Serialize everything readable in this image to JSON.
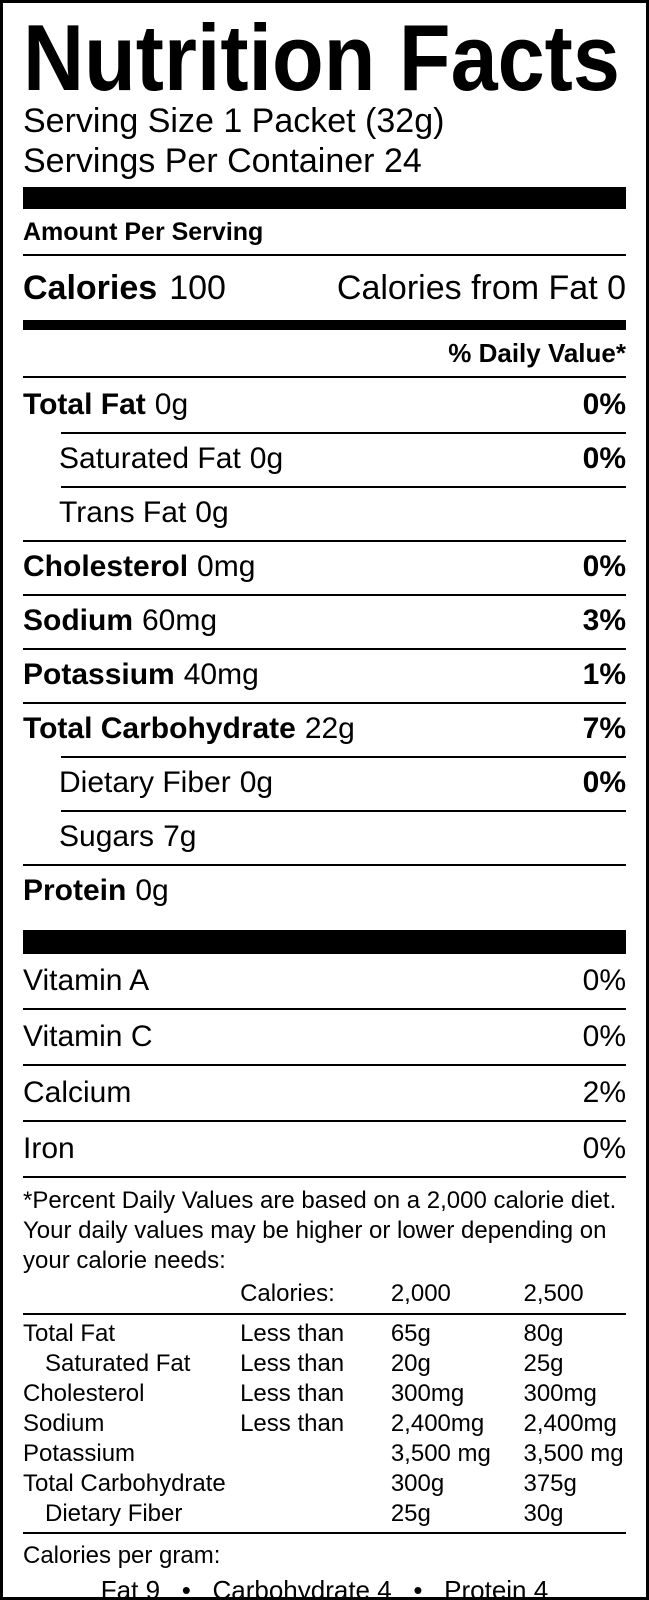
{
  "colors": {
    "ink": "#000000",
    "paper": "#ffffff"
  },
  "label": {
    "title": "Nutrition Facts",
    "serving": {
      "size": "Serving Size 1 Packet (32g)",
      "per_container": "Servings Per Container 24"
    },
    "amount_per_serving": "Amount Per Serving",
    "calories": {
      "label": "Calories",
      "value": "100",
      "from_fat": "Calories from Fat 0"
    },
    "daily_value_header": "% Daily Value*",
    "nutrients": [
      {
        "name": "Total Fat",
        "amount": "0g",
        "dv": "0%"
      },
      {
        "name": "Saturated Fat",
        "amount": "0g",
        "dv": "0%"
      },
      {
        "name": "Trans Fat",
        "amount": "0g",
        "dv": ""
      },
      {
        "name": "Cholesterol",
        "amount": "0mg",
        "dv": "0%"
      },
      {
        "name": "Sodium",
        "amount": "60mg",
        "dv": "3%"
      },
      {
        "name": "Potassium",
        "amount": "40mg",
        "dv": "1%"
      },
      {
        "name": "Total Carbohydrate",
        "amount": "22g",
        "dv": "7%"
      },
      {
        "name": "Dietary Fiber",
        "amount": "0g",
        "dv": "0%"
      },
      {
        "name": "Sugars",
        "amount": "7g",
        "dv": ""
      },
      {
        "name": "Protein",
        "amount": "0g",
        "dv": ""
      }
    ],
    "vitamins": [
      {
        "name": "Vitamin A",
        "dv": "0%"
      },
      {
        "name": "Vitamin C",
        "dv": "0%"
      },
      {
        "name": "Calcium",
        "dv": "2%"
      },
      {
        "name": "Iron",
        "dv": "0%"
      }
    ],
    "footnote": "*Percent Daily Values are based on a 2,000 calorie diet. Your daily values may be higher or lower depending on your calorie needs:",
    "dv_table": {
      "header": {
        "calories": "Calories:",
        "col2000": "2,000",
        "col2500": "2,500"
      },
      "rows": [
        {
          "name": "Total Fat",
          "qualifier": "Less than",
          "v2000": "65g",
          "v2500": "80g"
        },
        {
          "name": "Saturated Fat",
          "qualifier": "Less than",
          "v2000": "20g",
          "v2500": "25g"
        },
        {
          "name": "Cholesterol",
          "qualifier": "Less than",
          "v2000": "300mg",
          "v2500": "300mg"
        },
        {
          "name": "Sodium",
          "qualifier": "Less than",
          "v2000": "2,400mg",
          "v2500": "2,400mg"
        },
        {
          "name": "Potassium",
          "qualifier": "",
          "v2000": "3,500 mg",
          "v2500": "3,500 mg"
        },
        {
          "name": "Total Carbohydrate",
          "qualifier": "",
          "v2000": "300g",
          "v2500": "375g"
        },
        {
          "name": "Dietary Fiber",
          "qualifier": "",
          "v2000": "25g",
          "v2500": "30g"
        }
      ]
    },
    "calories_per_gram": {
      "label": "Calories per gram:",
      "values": "Fat 9   •   Carbohydrate 4   •   Protein 4"
    }
  }
}
